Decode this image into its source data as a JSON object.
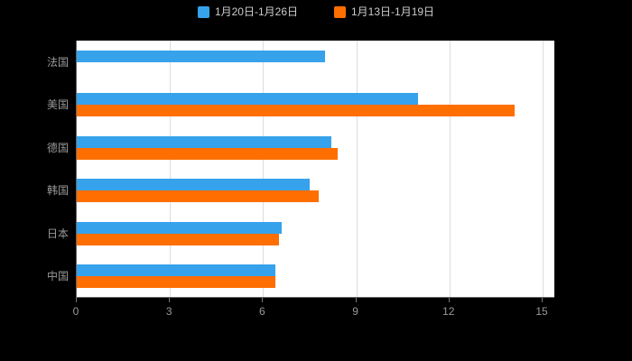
{
  "page": {
    "background_color": "#000000",
    "plot_background_color": "#ffffff"
  },
  "legend": [
    {
      "label": "1月20日-1月26日",
      "color": "#36A2EB"
    },
    {
      "label": "1月13日-1月19日",
      "color": "#FF6E00"
    }
  ],
  "chart_data": {
    "type": "bar",
    "orientation": "horizontal",
    "title": "",
    "xlabel": "",
    "ylabel": "",
    "categories": [
      "法国",
      "美国",
      "德国",
      "韩国",
      "日本",
      "中国"
    ],
    "series": [
      {
        "name": "1月20日-1月26日",
        "color": "#36A2EB",
        "values": [
          8,
          11,
          8.2,
          7.5,
          6.6,
          6.4
        ]
      },
      {
        "name": "1月13日-1月19日",
        "color": "#FF6E00",
        "values": [
          null,
          14.1,
          8.4,
          7.8,
          6.5,
          6.4
        ]
      }
    ],
    "xticks": [
      0,
      3,
      6,
      9,
      12,
      15
    ],
    "xlim": [
      0,
      15
    ],
    "grid": true,
    "legend_position": "top"
  }
}
